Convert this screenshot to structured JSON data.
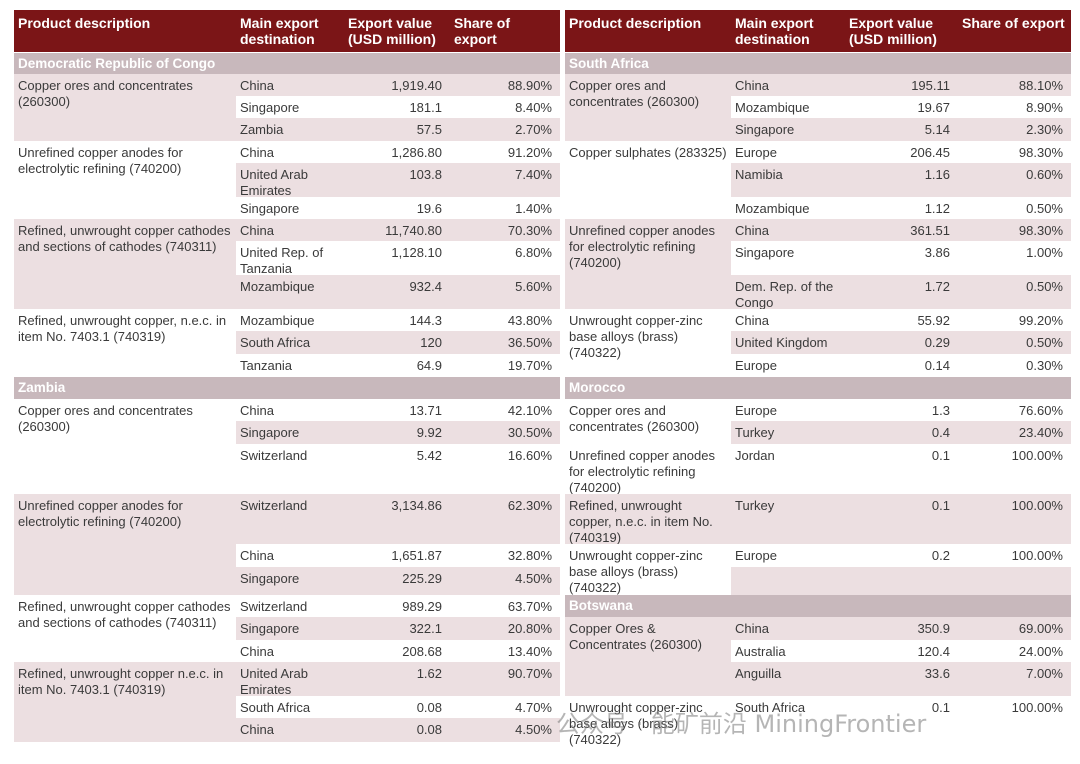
{
  "panels": [
    {
      "columns": [
        "Product description",
        "Main export destination",
        "Export value (USD million)",
        "Share of export"
      ],
      "sections": [
        {
          "country": "Democratic Republic of Congo",
          "groups": [
            {
              "product": "Copper ores and concentrates (260300)",
              "rows": [
                [
                  "China",
                  "1,919.40",
                  "88.90%"
                ],
                [
                  "Singapore",
                  "181.1",
                  "8.40%"
                ],
                [
                  "Zambia",
                  "57.5",
                  "2.70%"
                ]
              ]
            },
            {
              "product": "Unrefined copper anodes for electrolytic refining (740200)",
              "rows": [
                [
                  "China",
                  "1,286.80",
                  "91.20%"
                ],
                [
                  "United Arab Emirates",
                  "103.8",
                  "7.40%"
                ],
                [
                  "Singapore",
                  "19.6",
                  "1.40%"
                ]
              ]
            },
            {
              "product": "Refined, unwrought copper cathodes and sections of cathodes (740311)",
              "rows": [
                [
                  "China",
                  "11,740.80",
                  "70.30%"
                ],
                [
                  "United Rep. of Tanzania",
                  "1,128.10",
                  "6.80%"
                ],
                [
                  "Mozambique",
                  "932.4",
                  "5.60%"
                ]
              ]
            },
            {
              "product": "Refined, unwrought copper, n.e.c. in item No. 7403.1 (740319)",
              "rows": [
                [
                  "Mozambique",
                  "144.3",
                  "43.80%"
                ],
                [
                  "South Africa",
                  "120",
                  "36.50%"
                ],
                [
                  "Tanzania",
                  "64.9",
                  "19.70%"
                ]
              ]
            }
          ]
        },
        {
          "country": "Zambia",
          "groups": [
            {
              "product": "Copper ores and concentrates (260300)",
              "rows": [
                [
                  "China",
                  "13.71",
                  "42.10%"
                ],
                [
                  "Singapore",
                  "9.92",
                  "30.50%"
                ],
                [
                  "Switzerland",
                  "5.42",
                  "16.60%"
                ]
              ]
            },
            {
              "product": "Unrefined copper anodes for electrolytic refining (740200)",
              "rows": [
                [
                  "Switzerland",
                  "3,134.86",
                  "62.30%"
                ],
                [
                  "China",
                  "1,651.87",
                  "32.80%"
                ],
                [
                  "Singapore",
                  "225.29",
                  "4.50%"
                ]
              ]
            },
            {
              "product": "Refined, unwrought copper cathodes and sections of cathodes (740311)",
              "rows": [
                [
                  "Switzerland",
                  "989.29",
                  "63.70%"
                ],
                [
                  "Singapore",
                  "322.1",
                  "20.80%"
                ],
                [
                  "China",
                  "208.68",
                  "13.40%"
                ]
              ]
            },
            {
              "product": "Refined, unwrought copper n.e.c. in item No. 7403.1 (740319)",
              "rows": [
                [
                  "United Arab Emirates",
                  "1.62",
                  "90.70%"
                ],
                [
                  "South Africa",
                  "0.08",
                  "4.70%"
                ],
                [
                  "China",
                  "0.08",
                  "4.50%"
                ]
              ]
            }
          ]
        }
      ]
    },
    {
      "columns": [
        "Product description",
        "Main export destination",
        "Export value (USD million)",
        "Share of export"
      ],
      "sections": [
        {
          "country": "South Africa",
          "groups": [
            {
              "product": "Copper ores and concentrates (260300)",
              "rows": [
                [
                  "China",
                  "195.11",
                  "88.10%"
                ],
                [
                  "Mozambique",
                  "19.67",
                  "8.90%"
                ],
                [
                  "Singapore",
                  "5.14",
                  "2.30%"
                ]
              ]
            },
            {
              "product": "Copper sulphates (283325)",
              "rows": [
                [
                  "Europe",
                  "206.45",
                  "98.30%"
                ],
                [
                  "Namibia",
                  "1.16",
                  "0.60%"
                ],
                [
                  "Mozambique",
                  "1.12",
                  "0.50%"
                ]
              ]
            },
            {
              "product": "Unrefined copper anodes for electrolytic refining (740200)",
              "rows": [
                [
                  "China",
                  "361.51",
                  "98.30%"
                ],
                [
                  "Singapore",
                  "3.86",
                  "1.00%"
                ],
                [
                  "Dem. Rep. of the Congo",
                  "1.72",
                  "0.50%"
                ]
              ]
            },
            {
              "product": "Unwrought copper-zinc base alloys (brass) (740322)",
              "rows": [
                [
                  "China",
                  "55.92",
                  "99.20%"
                ],
                [
                  "United Kingdom",
                  "0.29",
                  "0.50%"
                ],
                [
                  "Europe",
                  "0.14",
                  "0.30%"
                ]
              ]
            }
          ]
        },
        {
          "country": "Morocco",
          "groups": [
            {
              "product": "Copper ores and concentrates (260300)",
              "rows": [
                [
                  "Europe",
                  "1.3",
                  "76.60%"
                ],
                [
                  "Turkey",
                  "0.4",
                  "23.40%"
                ]
              ]
            },
            {
              "product": "Unrefined copper anodes for electrolytic refining (740200)",
              "rows": [
                [
                  "Jordan",
                  "0.1",
                  "100.00%"
                ]
              ]
            },
            {
              "product": "Refined, unwrought copper, n.e.c. in item No. (740319)",
              "rows": [
                [
                  "Turkey",
                  "0.1",
                  "100.00%"
                ]
              ]
            },
            {
              "product": "Unwrought copper-zinc base alloys (brass) (740322)",
              "rows": [
                [
                  "Europe",
                  "0.2",
                  "100.00%"
                ]
              ]
            }
          ]
        },
        {
          "country": "Botswana",
          "groups": [
            {
              "product": "Copper Ores & Concentrates (260300)",
              "rows": [
                [
                  "China",
                  "350.9",
                  "69.00%"
                ],
                [
                  "Australia",
                  "120.4",
                  "24.00%"
                ],
                [
                  "Anguilla",
                  "33.6",
                  "7.00%"
                ]
              ]
            },
            {
              "product": "Unwrought copper-zinc base alloys (brass) (740322)",
              "rows": [
                [
                  "South Africa",
                  "0.1",
                  "100.00%"
                ]
              ]
            }
          ]
        }
      ]
    }
  ],
  "watermark": "公众号 · 能矿前沿 MiningFrontier"
}
